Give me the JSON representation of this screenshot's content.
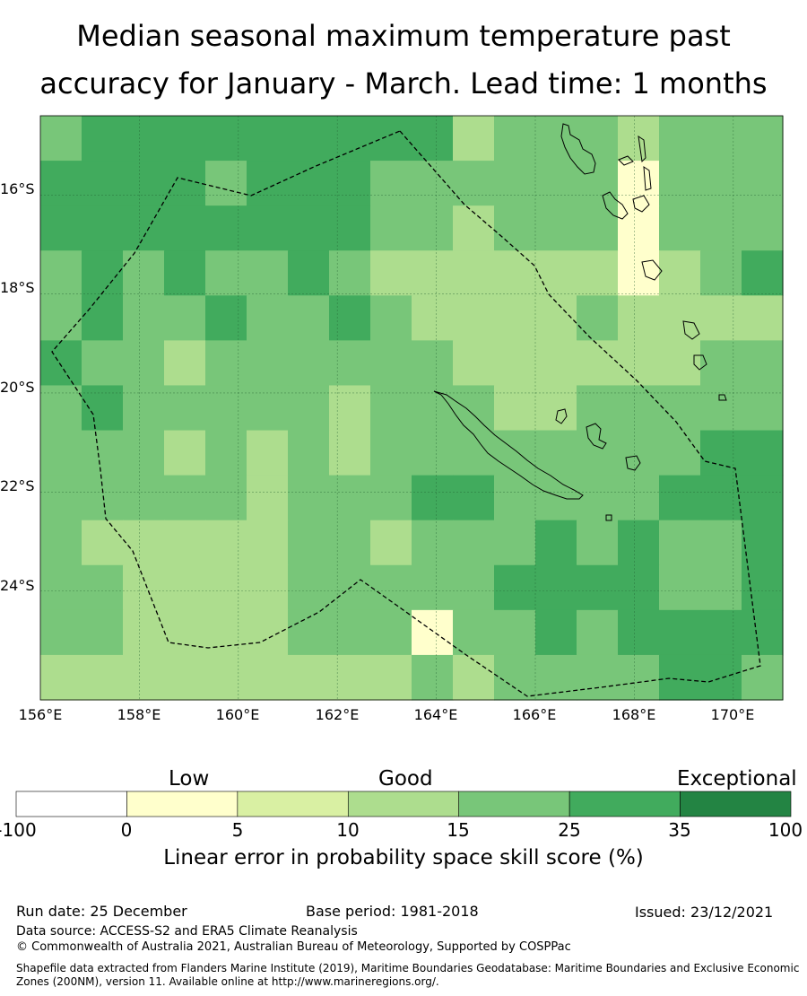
{
  "title": {
    "line1": "Median seasonal maximum temperature past",
    "line2": "accuracy for January - March. Lead time: 1 months"
  },
  "map": {
    "lon_range": [
      156,
      171
    ],
    "lat_range": [
      -14.4,
      -26.2
    ],
    "lat_labels": [
      "16°S",
      "18°S",
      "20°S",
      "22°S",
      "24°S"
    ],
    "lon_labels": [
      "156°E",
      "158°E",
      "160°E",
      "162°E",
      "164°E",
      "166°E",
      "168°E",
      "170°E"
    ],
    "grid_cols": 18,
    "grid_rows": 13,
    "cells": [
      [
        4,
        5,
        5,
        5,
        5,
        5,
        5,
        5,
        5,
        5,
        3,
        4,
        4,
        4,
        3,
        4,
        4,
        4
      ],
      [
        5,
        5,
        5,
        5,
        4,
        5,
        5,
        5,
        4,
        4,
        4,
        4,
        4,
        4,
        1,
        4,
        4,
        4
      ],
      [
        5,
        5,
        5,
        5,
        5,
        5,
        5,
        5,
        4,
        4,
        3,
        4,
        4,
        4,
        1,
        4,
        4,
        4
      ],
      [
        4,
        5,
        4,
        5,
        4,
        4,
        5,
        4,
        3,
        3,
        3,
        3,
        3,
        3,
        1,
        3,
        4,
        5
      ],
      [
        4,
        5,
        4,
        4,
        5,
        4,
        4,
        5,
        4,
        3,
        3,
        3,
        3,
        4,
        3,
        3,
        3,
        3
      ],
      [
        5,
        4,
        4,
        3,
        4,
        4,
        4,
        4,
        4,
        4,
        3,
        3,
        3,
        3,
        3,
        3,
        4,
        4
      ],
      [
        4,
        5,
        4,
        4,
        4,
        4,
        4,
        3,
        4,
        4,
        4,
        3,
        3,
        4,
        4,
        4,
        4,
        4
      ],
      [
        4,
        4,
        4,
        3,
        4,
        3,
        4,
        3,
        4,
        4,
        4,
        4,
        4,
        4,
        4,
        4,
        5,
        5
      ],
      [
        4,
        4,
        4,
        4,
        4,
        3,
        4,
        4,
        4,
        5,
        5,
        4,
        4,
        4,
        4,
        5,
        5,
        5
      ],
      [
        4,
        3,
        3,
        3,
        3,
        3,
        4,
        4,
        3,
        4,
        4,
        4,
        5,
        4,
        5,
        4,
        4,
        5
      ],
      [
        4,
        4,
        3,
        3,
        3,
        3,
        4,
        4,
        4,
        4,
        4,
        5,
        5,
        5,
        5,
        4,
        4,
        5
      ],
      [
        4,
        4,
        3,
        3,
        3,
        3,
        4,
        4,
        4,
        1,
        4,
        4,
        5,
        4,
        5,
        5,
        5,
        5
      ],
      [
        3,
        3,
        3,
        3,
        3,
        3,
        3,
        3,
        3,
        4,
        3,
        4,
        4,
        4,
        4,
        5,
        5,
        4
      ]
    ],
    "palette": {
      "c0": "#ffffff",
      "c1": "#ffffcc",
      "c2": "#d9f0a3",
      "c3": "#addd8e",
      "c4": "#78c679",
      "c5": "#41ab5d",
      "c6": "#238443"
    }
  },
  "colorbar": {
    "categories": [
      "Low",
      "Good",
      "Exceptional"
    ],
    "ticks": [
      "-100",
      "0",
      "5",
      "10",
      "15",
      "25",
      "35",
      "100"
    ],
    "title": "Linear error in probability space skill score (%)"
  },
  "footer": {
    "run_date": "Run date: 25 December",
    "base_period": "Base period: 1981-2018",
    "issued": "Issued: 23/12/2021",
    "data_source": "Data source: ACCESS-S2 and ERA5 Climate Reanalysis",
    "copyright": "© Commonwealth of Australia 2021, Australian Bureau of Meteorology, Supported by COSPPac",
    "shapefile": "Shapefile data extracted from Flanders Marine Institute (2019), Maritime Boundaries Geodatabase: Maritime Boundaries and Exclusive Economic Zones (200NM), version 11. Available online at http://www.marineregions.org/."
  }
}
